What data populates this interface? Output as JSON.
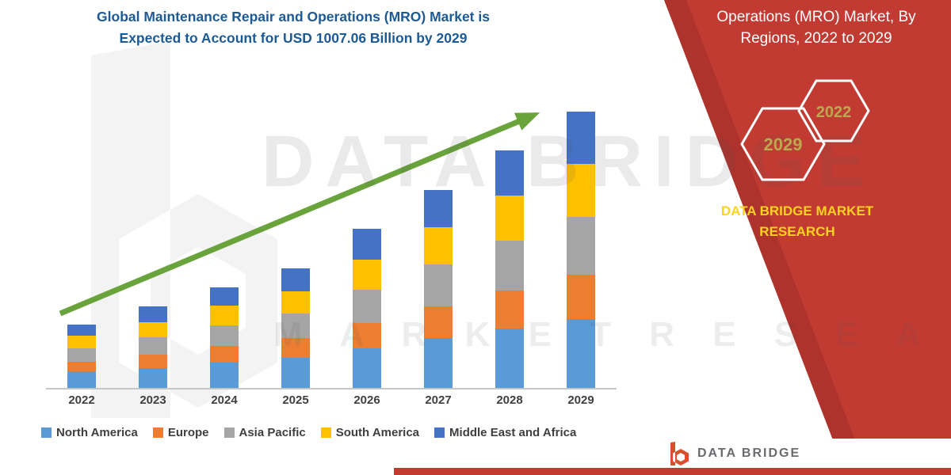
{
  "title": {
    "line1": "Global Maintenance Repair and Operations (MRO) Market is",
    "line2": "Expected to Account for USD 1007.06 Billion by 2029",
    "color": "#1C5A96"
  },
  "banner": {
    "color": "#C23B33",
    "edge_color": "#AD332C",
    "heading_line1": "Operations (MRO) Market, By",
    "heading_line2": "Regions, 2022 to 2029",
    "hexagons": [
      {
        "label": "2029"
      },
      {
        "label": "2022"
      }
    ],
    "hex_label_color": "#BCA84E",
    "brand_line1": "DATA BRIDGE MARKET",
    "brand_line2": "RESEARCH",
    "brand_color": "#FFD21F"
  },
  "watermark": {
    "big_text": "DATA BRIDGE",
    "sub_text": "M A R K E T   R E S E A R C H"
  },
  "logo_footer": {
    "text": "DATA BRIDGE",
    "strip_color": "#C23B33"
  },
  "chart_data": {
    "type": "bar",
    "stacked": true,
    "title": "Global Maintenance Repair and Operations (MRO) Market is Expected to Account for USD 1007.06 Billion by 2029",
    "xlabel": "",
    "ylabel": "",
    "units": "relative height units (no y-axis shown in figure)",
    "ylim": [
      0,
      380
    ],
    "grid": false,
    "legend_position": "bottom",
    "trend_arrow": true,
    "trend_color": "#69A33C",
    "categories": [
      "2022",
      "2023",
      "2024",
      "2025",
      "2026",
      "2027",
      "2028",
      "2029"
    ],
    "series": [
      {
        "name": "North America",
        "color": "#5B9BD5",
        "values": [
          21,
          26,
          33,
          39,
          51,
          64,
          77,
          89
        ]
      },
      {
        "name": "Europe",
        "color": "#ED7D31",
        "values": [
          13,
          17,
          21,
          25,
          33,
          41,
          49,
          57
        ]
      },
      {
        "name": "Asia Pacific",
        "color": "#A5A5A5",
        "values": [
          17,
          22,
          27,
          32,
          43,
          54,
          64,
          75
        ]
      },
      {
        "name": "South America",
        "color": "#FFC000",
        "values": [
          16,
          20,
          25,
          29,
          39,
          48,
          58,
          68
        ]
      },
      {
        "name": "Middle East and Africa",
        "color": "#4472C4",
        "values": [
          15,
          20,
          24,
          29,
          39,
          48,
          59,
          68
        ]
      }
    ]
  }
}
